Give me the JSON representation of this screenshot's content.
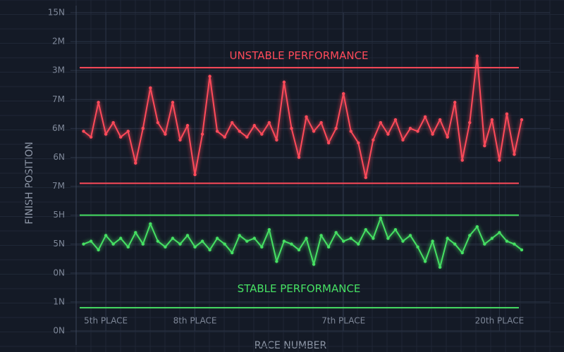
{
  "chart_data": {
    "type": "line",
    "y_label": "FINISH POSITION",
    "x_label": "RACE NUMBER",
    "annotations": [
      {
        "text": "UNSTABLE PERFORMANCE",
        "x": 30,
        "y": 9.5,
        "color": "#ff4a5a"
      },
      {
        "text": "STABLE PERFORMANCE",
        "x": 30,
        "y": 1.45,
        "color": "#46e063"
      }
    ],
    "reference_lines": [
      {
        "value": 9.1,
        "color": "#ff4a5a"
      },
      {
        "value": 5.1,
        "color": "#ff4a5a"
      },
      {
        "value": 4.0,
        "color": "#46e063"
      },
      {
        "value": 0.8,
        "color": "#46e063"
      }
    ],
    "xlim": [
      0,
      60
    ],
    "xticks": [
      {
        "value": 4,
        "label": "5th PLACE"
      },
      {
        "value": 16,
        "label": "8th PLACE"
      },
      {
        "value": 36,
        "label": "7th PLACE"
      },
      {
        "value": 57,
        "label": "20th PLACE"
      }
    ],
    "ylim": [
      0,
      11
    ],
    "yticks": [
      {
        "value": 11,
        "label": "15N"
      },
      {
        "value": 10,
        "label": "2M"
      },
      {
        "value": 9,
        "label": "3M"
      },
      {
        "value": 8,
        "label": "7M"
      },
      {
        "value": 7,
        "label": "6M"
      },
      {
        "value": 6,
        "label": "6N"
      },
      {
        "value": 5,
        "label": "7M"
      },
      {
        "value": 4,
        "label": "5H"
      },
      {
        "value": 3,
        "label": "5N"
      },
      {
        "value": 2,
        "label": "0N"
      },
      {
        "value": 1,
        "label": "1N"
      },
      {
        "value": 0,
        "label": "0N"
      }
    ],
    "grid": true,
    "x": [
      1,
      2,
      3,
      4,
      5,
      6,
      7,
      8,
      9,
      10,
      11,
      12,
      13,
      14,
      15,
      16,
      17,
      18,
      19,
      20,
      21,
      22,
      23,
      24,
      25,
      26,
      27,
      28,
      29,
      30,
      31,
      32,
      33,
      34,
      35,
      36,
      37,
      38,
      39,
      40,
      41,
      42,
      43,
      44,
      45,
      46,
      47,
      48,
      49,
      50,
      51,
      52,
      53,
      54,
      55,
      56,
      57,
      58,
      59,
      60
    ],
    "series": [
      {
        "color": "#ff4a5a",
        "values": [
          6.9,
          6.7,
          7.9,
          6.8,
          7.2,
          6.7,
          6.9,
          5.8,
          7.0,
          8.4,
          7.2,
          6.8,
          7.9,
          6.6,
          7.1,
          5.4,
          6.8,
          8.8,
          6.9,
          6.7,
          7.2,
          6.9,
          6.7,
          7.1,
          6.8,
          7.2,
          6.6,
          8.6,
          7.0,
          6.0,
          7.4,
          6.9,
          7.2,
          6.5,
          7.0,
          8.2,
          6.9,
          6.5,
          5.3,
          6.6,
          7.2,
          6.8,
          7.3,
          6.6,
          7.0,
          6.9,
          7.4,
          6.8,
          7.3,
          6.7,
          7.9,
          5.9,
          7.2,
          9.5,
          6.4,
          7.3,
          5.9,
          7.5,
          6.1,
          7.3
        ]
      },
      {
        "color": "#46e063",
        "values": [
          3.0,
          3.1,
          2.8,
          3.3,
          3.0,
          3.2,
          2.9,
          3.4,
          3.0,
          3.7,
          3.1,
          2.9,
          3.2,
          3.0,
          3.3,
          2.9,
          3.1,
          2.8,
          3.2,
          3.0,
          2.7,
          3.3,
          3.1,
          3.2,
          2.9,
          3.5,
          2.4,
          3.1,
          3.0,
          2.8,
          3.2,
          2.3,
          3.3,
          2.9,
          3.4,
          3.1,
          3.2,
          3.0,
          3.5,
          3.2,
          3.9,
          3.2,
          3.5,
          3.1,
          3.3,
          2.9,
          2.4,
          3.1,
          2.2,
          3.2,
          3.0,
          2.7,
          3.3,
          3.6,
          3.0,
          3.2,
          3.4,
          3.1,
          3.0,
          2.8
        ]
      }
    ]
  }
}
